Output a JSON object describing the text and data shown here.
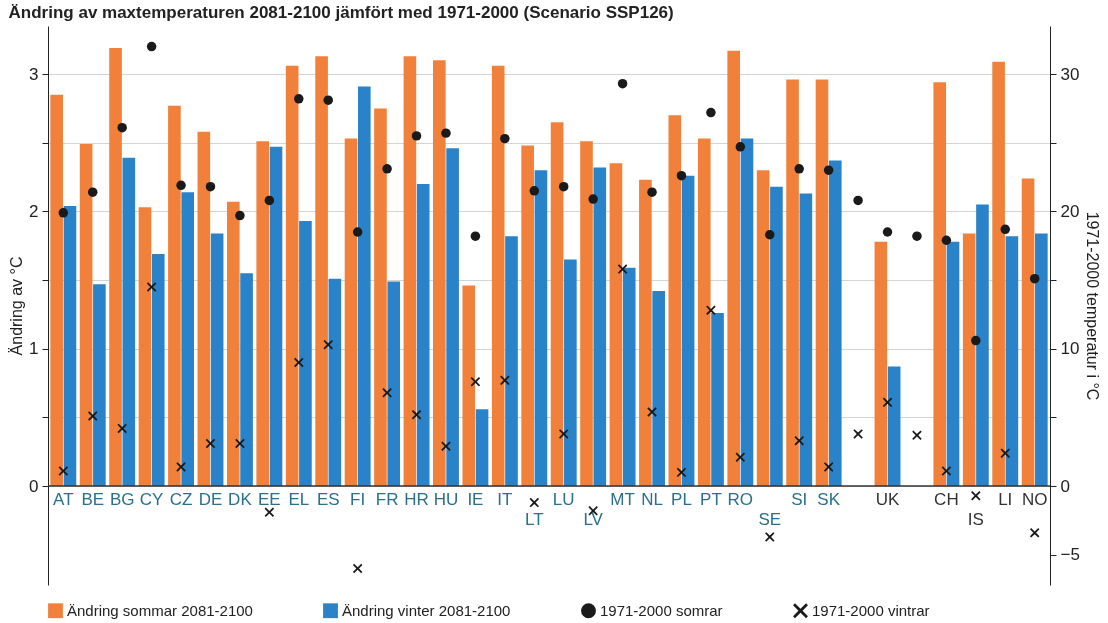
{
  "chart_data": {
    "type": "bar",
    "title": "Ändring av maxtemperaturen 2081-2100 jämfört med 1971-2000 (Scenario SSP126)",
    "categories": [
      "AT",
      "BE",
      "BG",
      "CY",
      "CZ",
      "DE",
      "DK",
      "EE",
      "EL",
      "ES",
      "FI",
      "FR",
      "HR",
      "HU",
      "IE",
      "IT",
      "LT",
      "LU",
      "LV",
      "MT",
      "NL",
      "PL",
      "PT",
      "RO",
      "SE",
      "SI",
      "SK",
      null,
      "UK",
      null,
      "CH",
      "IS",
      "LI",
      "NO"
    ],
    "series": [
      {
        "name": "Ändring sommar 2081-2100",
        "color": "#f0803a",
        "values": [
          2.85,
          2.49,
          3.19,
          2.03,
          2.77,
          2.58,
          2.07,
          2.51,
          3.06,
          3.13,
          2.53,
          2.75,
          3.13,
          3.1,
          1.46,
          3.06,
          2.48,
          2.65,
          2.51,
          2.35,
          2.23,
          2.7,
          2.53,
          3.17,
          2.3,
          2.96,
          2.96,
          null,
          1.78,
          null,
          2.94,
          1.84,
          3.09,
          2.24
        ]
      },
      {
        "name": "Ändring vinter 2081-2100",
        "color": "#2a82c8",
        "values": [
          2.04,
          1.47,
          2.39,
          1.69,
          2.14,
          1.84,
          1.55,
          2.47,
          1.93,
          1.51,
          2.91,
          1.49,
          2.2,
          2.46,
          0.56,
          1.82,
          2.3,
          1.65,
          2.32,
          1.59,
          1.42,
          2.26,
          1.26,
          2.53,
          2.18,
          2.13,
          2.37,
          null,
          0.87,
          null,
          1.78,
          2.05,
          1.82,
          1.84
        ]
      },
      {
        "name": "1971-2000 somrar",
        "type": "scatter",
        "axis": "y2",
        "marker": "circle",
        "color": "#1a1a1a",
        "values": [
          19.9,
          21.4,
          26.1,
          32.0,
          21.9,
          21.8,
          19.7,
          20.8,
          28.2,
          28.1,
          18.5,
          23.1,
          25.5,
          25.7,
          18.2,
          25.3,
          21.5,
          21.8,
          20.9,
          29.3,
          21.4,
          22.6,
          27.2,
          24.7,
          18.3,
          23.1,
          23.0,
          20.8,
          18.5,
          18.2,
          17.9,
          10.6,
          18.7,
          15.1
        ]
      },
      {
        "name": "1971-2000 vintrar",
        "type": "scatter",
        "axis": "y2",
        "marker": "cross",
        "color": "#1a1a1a",
        "values": [
          1.1,
          5.1,
          4.2,
          14.5,
          1.4,
          3.1,
          3.1,
          -1.9,
          9.0,
          10.3,
          -6.0,
          6.8,
          5.2,
          2.9,
          7.6,
          7.7,
          -1.2,
          3.8,
          -1.8,
          15.8,
          5.4,
          1.0,
          12.8,
          2.1,
          -3.7,
          3.3,
          1.4,
          3.8,
          6.1,
          3.7,
          1.1,
          -0.7,
          2.4,
          -3.4
        ]
      }
    ],
    "ylabel": "Ändring av °C",
    "y2label": "1971-2000 temperatur i °C",
    "ylim": [
      -0.72,
      3.35
    ],
    "yticks": [
      0,
      {
        "value": 0.5,
        "label": null
      },
      1,
      {
        "value": 1.5,
        "label": null
      },
      2,
      {
        "value": 2.5,
        "label": null
      },
      3
    ],
    "y2lim": [
      -7.2,
      33.5
    ],
    "y2ticks": [
      -5,
      0,
      {
        "value": 5,
        "label": null
      },
      10,
      {
        "value": 15,
        "label": null
      },
      20,
      {
        "value": 25,
        "label": null
      },
      30
    ],
    "grid": "y",
    "legend": "bottom"
  }
}
